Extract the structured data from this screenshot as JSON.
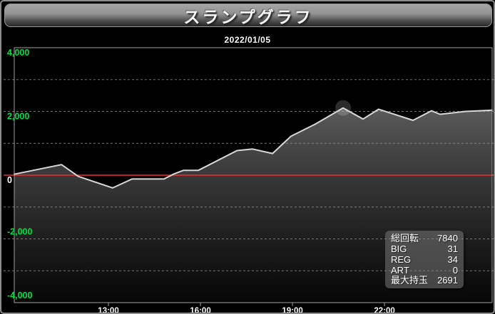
{
  "header": {
    "title": "スランプグラフ",
    "date": "2022/01/05"
  },
  "stats": {
    "rows": [
      {
        "label": "総回転",
        "value": "7840"
      },
      {
        "label": "BIG",
        "value": "31"
      },
      {
        "label": "REG",
        "value": "34"
      },
      {
        "label": "ART",
        "value": "0"
      },
      {
        "label": "最大持玉",
        "value": "2691"
      }
    ]
  },
  "chart_data": {
    "type": "area",
    "title": "スランプグラフ",
    "date": "2022/01/05",
    "x_axis": {
      "unit": "hour_of_day",
      "lim": [
        9.93,
        25.51
      ],
      "ticks": [
        13,
        16,
        19,
        22
      ],
      "tick_labels": [
        "13:00",
        "16:00",
        "19:00",
        "22:00"
      ]
    },
    "y_axis": {
      "lim": [
        -4000,
        4000
      ],
      "ticks": [
        4000,
        2000,
        0,
        -2000,
        -4000
      ],
      "tick_labels": [
        "4,000",
        "2,000",
        "0",
        "-2,000",
        "-4,000"
      ],
      "grid_values": [
        3000,
        2000,
        1000,
        -1000,
        -2000,
        -3000
      ]
    },
    "zero_line_value": 0,
    "series": [
      {
        "name": "slump",
        "points": [
          [
            9.93,
            30
          ],
          [
            11.47,
            330
          ],
          [
            12.02,
            -40
          ],
          [
            13.14,
            -400
          ],
          [
            13.77,
            -120
          ],
          [
            14.81,
            -120
          ],
          [
            15.14,
            40
          ],
          [
            15.44,
            150
          ],
          [
            15.93,
            150
          ],
          [
            17.19,
            770
          ],
          [
            17.7,
            820
          ],
          [
            18.35,
            680
          ],
          [
            18.95,
            1220
          ],
          [
            19.74,
            1600
          ],
          [
            20.65,
            2110
          ],
          [
            21.3,
            1760
          ],
          [
            21.81,
            2070
          ],
          [
            22.93,
            1720
          ],
          [
            23.53,
            2020
          ],
          [
            23.81,
            1910
          ],
          [
            24.63,
            2000
          ],
          [
            25.51,
            2040
          ]
        ]
      }
    ],
    "max_point": {
      "t": 20.65,
      "value": 2110
    },
    "grid_on": true,
    "legend": "none"
  },
  "colors": {
    "background": "#000000",
    "frame_border": "#8c8c8c",
    "tick_label_green": "#00dd44",
    "tick_label_white": "#ffffff",
    "zero_line_red": "#ee3030",
    "series_line": "#d8d8d8",
    "grid_line": "#989898",
    "axis_border": "#a0a0a0",
    "glow_marker": "rgba(255,255,255,0.17)",
    "fill_gradient": [
      "#5a5a5a",
      "#383838",
      "#1c1c1c",
      "#060606"
    ]
  }
}
